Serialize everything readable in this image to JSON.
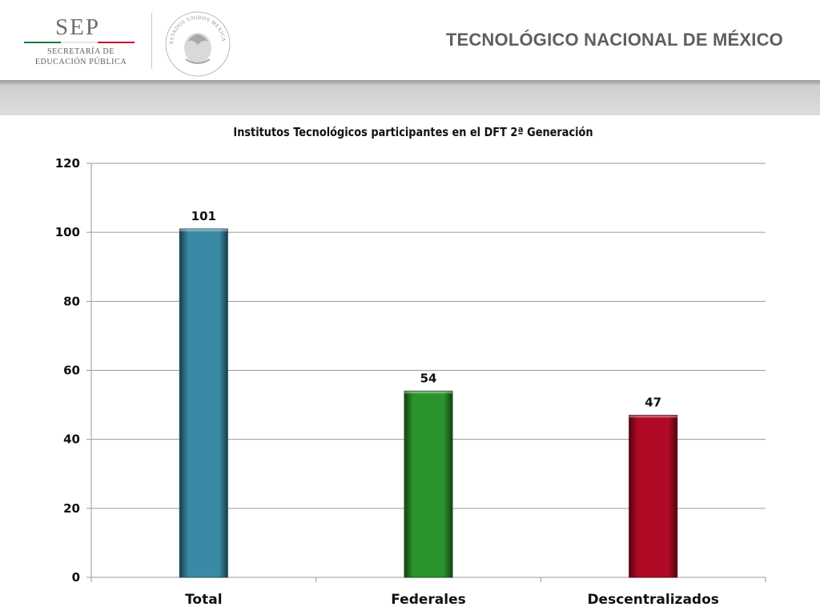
{
  "header": {
    "logo_text": "SEP",
    "logo_subtitle_line1": "SECRETARÍA DE",
    "logo_subtitle_line2": "EDUCACIÓN PÚBLICA",
    "seal_text": "ESTADOS UNIDOS MEXICANOS",
    "org_title": "TECNOLÓGICO NACIONAL DE MÉXICO",
    "flag_colors": [
      "#0b7a3b",
      "#ffffff",
      "#c8102e"
    ]
  },
  "chart_data": {
    "type": "bar",
    "title": "Institutos Tecnológicos participantes en el DFT 2ª Generación",
    "categories": [
      "Total",
      "Federales",
      "Descentralizados"
    ],
    "values": [
      101,
      54,
      47
    ],
    "bar_colors": [
      "#3a8aa6",
      "#2b932b",
      "#b00a26"
    ],
    "data_labels": [
      "101",
      "54",
      "47"
    ],
    "ylim": [
      0,
      120
    ],
    "yticks": [
      0,
      20,
      40,
      60,
      80,
      100,
      120
    ],
    "xlabel": "",
    "ylabel": "",
    "grid": true,
    "legend": "none"
  }
}
